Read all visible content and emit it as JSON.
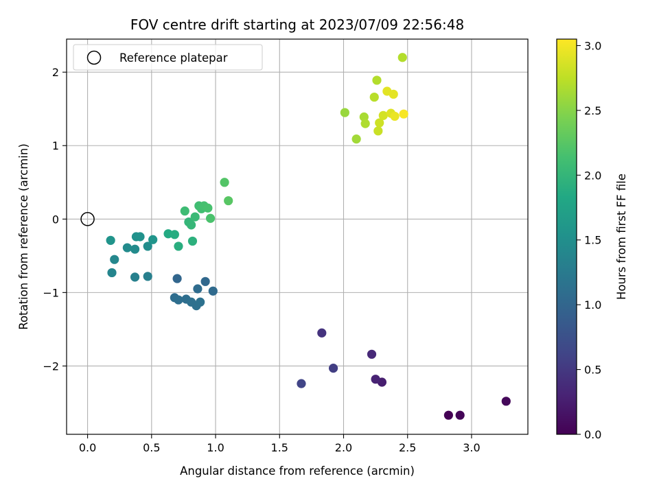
{
  "chart_data": {
    "type": "scatter",
    "title": "FOV centre drift starting at 2023/07/09 22:56:48",
    "xlabel": "Angular distance from reference (arcmin)",
    "ylabel": "Rotation from reference (arcmin)",
    "xlim": [
      -0.164,
      3.44
    ],
    "ylim": [
      -2.93,
      2.45
    ],
    "xticks": [
      0.0,
      0.5,
      1.0,
      1.5,
      2.0,
      2.5,
      3.0
    ],
    "xtick_labels": [
      "0.0",
      "0.5",
      "1.0",
      "1.5",
      "2.0",
      "2.5",
      "3.0"
    ],
    "yticks": [
      -2,
      -1,
      0,
      1,
      2
    ],
    "ytick_labels": [
      "−2",
      "−1",
      "0",
      "1",
      "2"
    ],
    "grid": true,
    "legend": {
      "position": "top-left",
      "entries": [
        "Reference platepar"
      ]
    },
    "reference_point": {
      "x": 0.0,
      "y": 0.0
    },
    "colorbar": {
      "label": "Hours from first FF file",
      "colormap": "viridis",
      "range": [
        0.0,
        3.05
      ],
      "ticks": [
        0.0,
        0.5,
        1.0,
        1.5,
        2.0,
        2.5,
        3.0
      ],
      "tick_labels": [
        "0.0",
        "0.5",
        "1.0",
        "1.5",
        "2.0",
        "2.5",
        "3.0"
      ]
    },
    "points": [
      {
        "x": 2.82,
        "y": -2.67,
        "c": 0.0
      },
      {
        "x": 2.91,
        "y": -2.67,
        "c": 0.03
      },
      {
        "x": 3.27,
        "y": -2.48,
        "c": 0.06
      },
      {
        "x": 2.3,
        "y": -2.22,
        "c": 0.25
      },
      {
        "x": 2.25,
        "y": -2.18,
        "c": 0.3
      },
      {
        "x": 2.22,
        "y": -1.84,
        "c": 0.35
      },
      {
        "x": 1.83,
        "y": -1.55,
        "c": 0.45
      },
      {
        "x": 1.92,
        "y": -2.03,
        "c": 0.55
      },
      {
        "x": 1.67,
        "y": -2.24,
        "c": 0.62
      },
      {
        "x": 0.7,
        "y": -0.81,
        "c": 1.0
      },
      {
        "x": 0.92,
        "y": -0.85,
        "c": 1.02
      },
      {
        "x": 0.98,
        "y": -0.98,
        "c": 1.05
      },
      {
        "x": 0.86,
        "y": -0.95,
        "c": 1.07
      },
      {
        "x": 0.68,
        "y": -1.07,
        "c": 1.08
      },
      {
        "x": 0.71,
        "y": -1.1,
        "c": 1.1
      },
      {
        "x": 0.77,
        "y": -1.09,
        "c": 1.1
      },
      {
        "x": 0.81,
        "y": -1.13,
        "c": 1.12
      },
      {
        "x": 0.85,
        "y": -1.18,
        "c": 1.12
      },
      {
        "x": 0.88,
        "y": -1.13,
        "c": 1.14
      },
      {
        "x": 0.47,
        "y": -0.78,
        "c": 1.3
      },
      {
        "x": 0.37,
        "y": -0.79,
        "c": 1.32
      },
      {
        "x": 0.19,
        "y": -0.73,
        "c": 1.38
      },
      {
        "x": 0.21,
        "y": -0.55,
        "c": 1.4
      },
      {
        "x": 0.31,
        "y": -0.39,
        "c": 1.45
      },
      {
        "x": 0.37,
        "y": -0.41,
        "c": 1.45
      },
      {
        "x": 0.47,
        "y": -0.37,
        "c": 1.48
      },
      {
        "x": 0.38,
        "y": -0.24,
        "c": 1.52
      },
      {
        "x": 0.41,
        "y": -0.24,
        "c": 1.54
      },
      {
        "x": 0.18,
        "y": -0.29,
        "c": 1.56
      },
      {
        "x": 0.51,
        "y": -0.28,
        "c": 1.58
      },
      {
        "x": 0.63,
        "y": -0.2,
        "c": 1.85
      },
      {
        "x": 0.68,
        "y": -0.21,
        "c": 1.88
      },
      {
        "x": 0.71,
        "y": -0.37,
        "c": 1.9
      },
      {
        "x": 0.82,
        "y": -0.3,
        "c": 1.93
      },
      {
        "x": 0.79,
        "y": -0.04,
        "c": 2.0
      },
      {
        "x": 0.81,
        "y": -0.08,
        "c": 2.02
      },
      {
        "x": 0.84,
        "y": 0.03,
        "c": 2.05
      },
      {
        "x": 0.76,
        "y": 0.11,
        "c": 2.08
      },
      {
        "x": 0.87,
        "y": 0.18,
        "c": 2.1
      },
      {
        "x": 0.89,
        "y": 0.14,
        "c": 2.12
      },
      {
        "x": 0.91,
        "y": 0.18,
        "c": 2.14
      },
      {
        "x": 0.94,
        "y": 0.15,
        "c": 2.15
      },
      {
        "x": 0.96,
        "y": 0.01,
        "c": 2.17
      },
      {
        "x": 1.07,
        "y": 0.5,
        "c": 2.22
      },
      {
        "x": 1.1,
        "y": 0.25,
        "c": 2.25
      },
      {
        "x": 2.01,
        "y": 1.45,
        "c": 2.58
      },
      {
        "x": 2.1,
        "y": 1.09,
        "c": 2.62
      },
      {
        "x": 2.16,
        "y": 1.39,
        "c": 2.65
      },
      {
        "x": 2.17,
        "y": 1.3,
        "c": 2.68
      },
      {
        "x": 2.24,
        "y": 1.66,
        "c": 2.72
      },
      {
        "x": 2.26,
        "y": 1.89,
        "c": 2.7
      },
      {
        "x": 2.27,
        "y": 1.2,
        "c": 2.8
      },
      {
        "x": 2.28,
        "y": 1.31,
        "c": 2.82
      },
      {
        "x": 2.31,
        "y": 1.41,
        "c": 2.85
      },
      {
        "x": 2.34,
        "y": 1.74,
        "c": 2.92
      },
      {
        "x": 2.37,
        "y": 1.44,
        "c": 2.9
      },
      {
        "x": 2.39,
        "y": 1.7,
        "c": 2.93
      },
      {
        "x": 2.4,
        "y": 1.4,
        "c": 2.96
      },
      {
        "x": 2.46,
        "y": 2.2,
        "c": 2.7
      },
      {
        "x": 2.47,
        "y": 1.43,
        "c": 3.02
      }
    ]
  }
}
